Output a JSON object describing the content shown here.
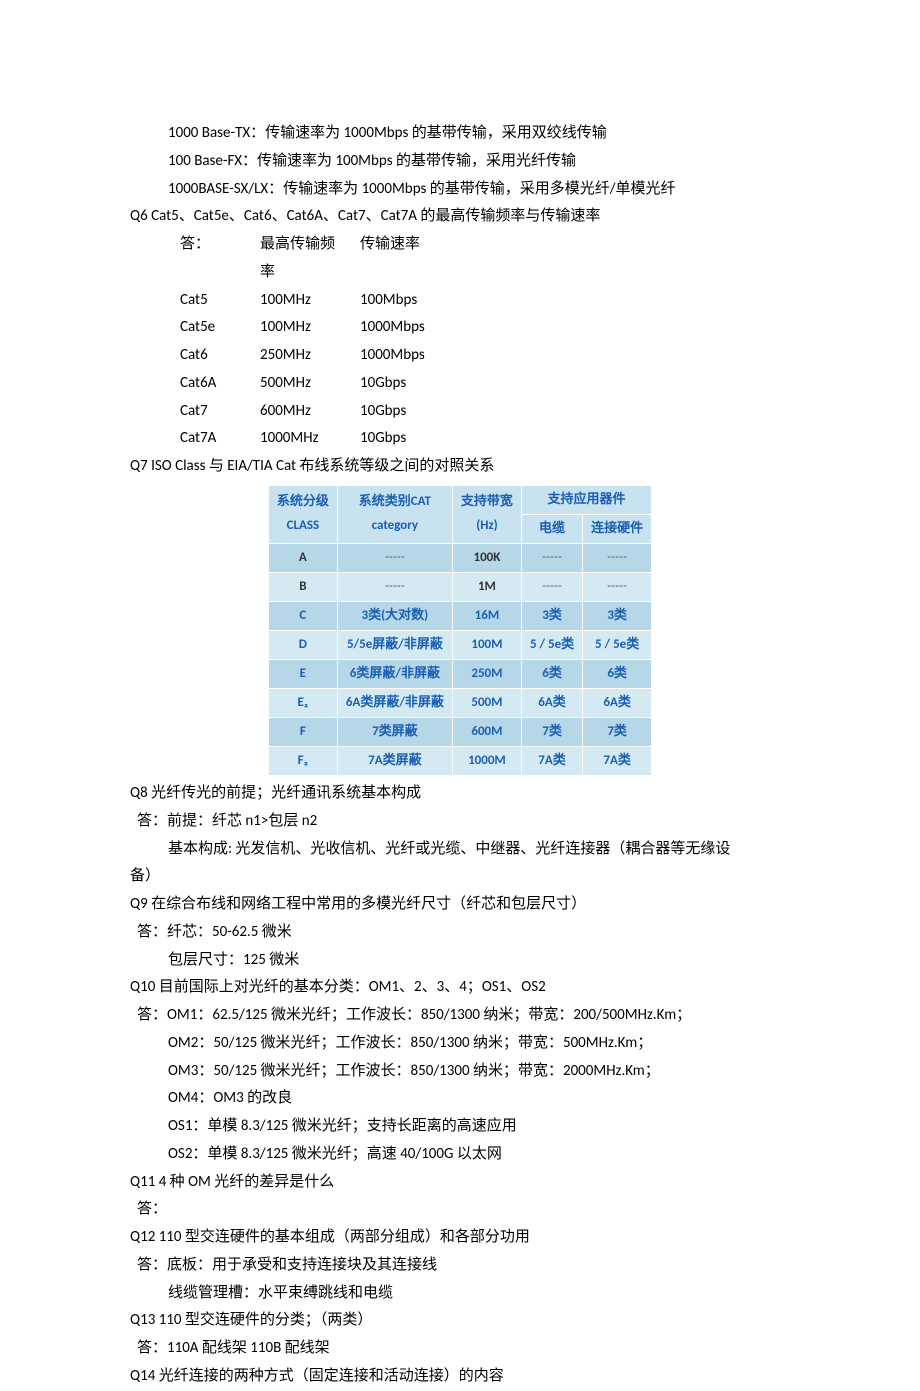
{
  "lines": {
    "l1": "1000 Base-TX：传输速率为 1000Mbps 的基带传输，采用双绞线传输",
    "l2": "100 Base-FX：传输速率为 100Mbps 的基带传输，采用光纤传输",
    "l3": "1000BASE-SX/LX：传输速率为 1000Mbps 的基带传输，采用多模光纤/单模光纤",
    "q6": "Q6 Cat5、Cat5e、Cat6、Cat6A、Cat7、Cat7A  的最高传输频率与传输速率",
    "q6a_prefix": "答：",
    "q6a_h1": "最高传输频率",
    "q6a_h2": "传输速率",
    "q7": "Q7 ISO Class  与  EIA/TIA Cat  布线系统等级之间的对照关系",
    "q8": "Q8  光纤传光的前提；光纤通讯系统基本构成",
    "q8a1": "答：前提：纤芯 n1>包层 n2",
    "q8a2": "基本构成: 光发信机、光收信机、光纤或光缆、中继器、光纤连接器（耦合器等无缘设",
    "q8a3": "备）",
    "q9": "Q9  在综合布线和网络工程中常用的多模光纤尺寸（纤芯和包层尺寸）",
    "q9a1": "答：纤芯：50-62.5 微米",
    "q9a2": "包层尺寸：125 微米",
    "q10": "Q10  目前国际上对光纤的基本分类：OM1、2、3、4；OS1、OS2",
    "q10a1": "答：OM1：62.5/125 微米光纤；工作波长：850/1300 纳米；带宽：200/500MHz.Km；",
    "q10a2": "OM2：50/125 微米光纤；工作波长：850/1300 纳米；带宽：500MHz.Km；",
    "q10a3": "OM3：50/125 微米光纤；工作波长：850/1300 纳米；带宽：2000MHz.Km；",
    "q10a4": "OM4：OM3 的改良",
    "q10a5": "OS1：单模 8.3/125 微米光纤；支持长距离的高速应用",
    "q10a6": "OS2：单模 8.3/125 微米光纤；高速 40/100G 以太网",
    "q11": "Q11 4 种 OM 光纤的差异是什么",
    "q11a": "答：",
    "q12": "Q12 110 型交连硬件的基本组成（两部分组成）和各部分功用",
    "q12a1": "答：底板：用于承受和支持连接块及其连接线",
    "q12a2": "线缆管理槽：水平束缚跳线和电缆",
    "q13": "Q13 110 型交连硬件的分类；（两类）",
    "q13a": "答：110A 配线架  110B 配线架",
    "q14": "Q14  光纤连接的两种方式（固定连接和活动连接）的内容"
  },
  "cat_rows": [
    {
      "name": "Cat5",
      "freq": "100MHz",
      "speed": "100Mbps"
    },
    {
      "name": "Cat5e",
      "freq": "100MHz",
      "speed": "1000Mbps"
    },
    {
      "name": "Cat6",
      "freq": "250MHz",
      "speed": "1000Mbps"
    },
    {
      "name": "Cat6A",
      "freq": "500MHz",
      "speed": "10Gbps"
    },
    {
      "name": "Cat7",
      "freq": "600MHz",
      "speed": "10Gbps"
    },
    {
      "name": "Cat7A",
      "freq": "1000MHz",
      "speed": "10Gbps"
    }
  ],
  "iso_table": {
    "headers": {
      "class": "系统分级",
      "class_en": "CLASS",
      "cat": "系统类别CAT",
      "cat_en": "category",
      "bw": "支持带宽",
      "bw_unit": "(Hz)",
      "support": "支持应用器件",
      "cable": "电缆",
      "conn": "连接硬件"
    },
    "rows": [
      {
        "class": "A",
        "cat": "-----",
        "bw": "100K",
        "cable": "-----",
        "conn": "-----",
        "blue": false
      },
      {
        "class": "B",
        "cat": "-----",
        "bw": "1M",
        "cable": "-----",
        "conn": "-----",
        "blue": false
      },
      {
        "class": "C",
        "cat": "3类(大对数)",
        "bw": "16M",
        "cable": "3类",
        "conn": "3类",
        "blue": true
      },
      {
        "class": "D",
        "cat": "5/5e屏蔽/非屏蔽",
        "bw": "100M",
        "cable": "5 / 5e类",
        "conn": "5 / 5e类",
        "blue": true
      },
      {
        "class": "E",
        "cat": "6类屏蔽/非屏蔽",
        "bw": "250M",
        "cable": "6类",
        "conn": "6类",
        "blue": true
      },
      {
        "class": "Eₐ",
        "cat": "6A类屏蔽/非屏蔽",
        "bw": "500M",
        "cable": "6A类",
        "conn": "6A类",
        "blue": true
      },
      {
        "class": "F",
        "cat": "7类屏蔽",
        "bw": "600M",
        "cable": "7类",
        "conn": "7类",
        "blue": true
      },
      {
        "class": "Fₐ",
        "cat": "7A类屏蔽",
        "bw": "1000M",
        "cable": "7A类",
        "conn": "7A类",
        "blue": true
      }
    ],
    "colors": {
      "header_bg": "#c8e2ef",
      "row_odd_bg": "#b6d7e8",
      "row_even_bg": "#d4e9f2",
      "blue_text": "#1a5fb4",
      "border": "#ffffff"
    }
  }
}
